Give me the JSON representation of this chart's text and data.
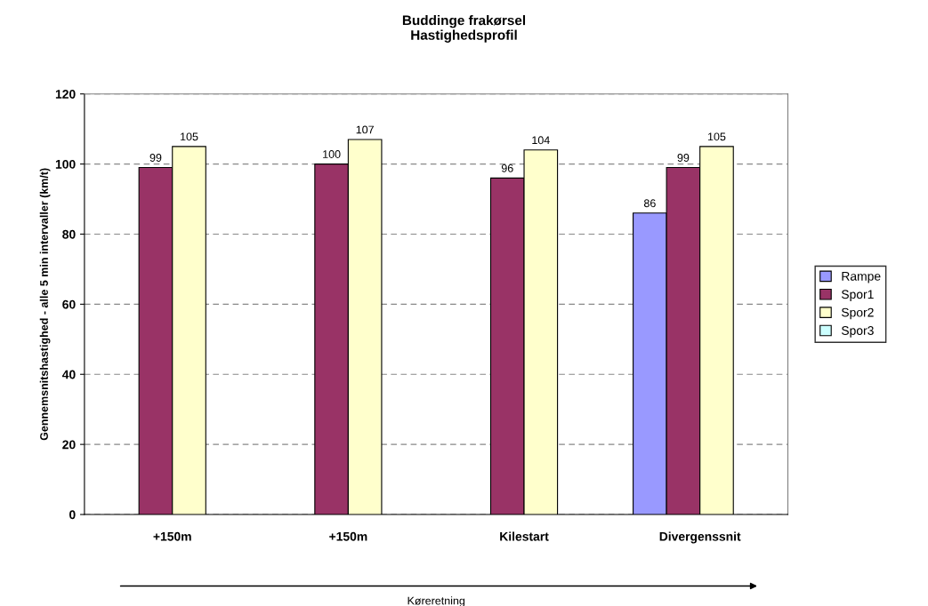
{
  "chart_data": {
    "type": "bar",
    "title": "Buddinge frakørsel\nHastighedsprofil",
    "ylabel": "Gennemsnitshastighed - alle 5 min intervaller (km/t)",
    "categories": [
      "+150m",
      "+150m",
      "Kilestart",
      "Divergenssnit"
    ],
    "series": [
      {
        "name": "Rampe",
        "color": "#9999ff",
        "values": [
          null,
          null,
          null,
          86
        ]
      },
      {
        "name": "Spor1",
        "color": "#993366",
        "values": [
          99,
          100,
          96,
          99
        ]
      },
      {
        "name": "Spor2",
        "color": "#ffffcc",
        "values": [
          105,
          107,
          104,
          105
        ]
      },
      {
        "name": "Spor3",
        "color": "#ccffff",
        "values": [
          null,
          null,
          null,
          null
        ]
      }
    ],
    "ylim": [
      0,
      120
    ],
    "yticks": [
      0,
      20,
      40,
      60,
      80,
      100,
      120
    ],
    "grid": "y",
    "legend": "right",
    "data_labels": true,
    "annotations": [
      "Køreretning"
    ]
  }
}
